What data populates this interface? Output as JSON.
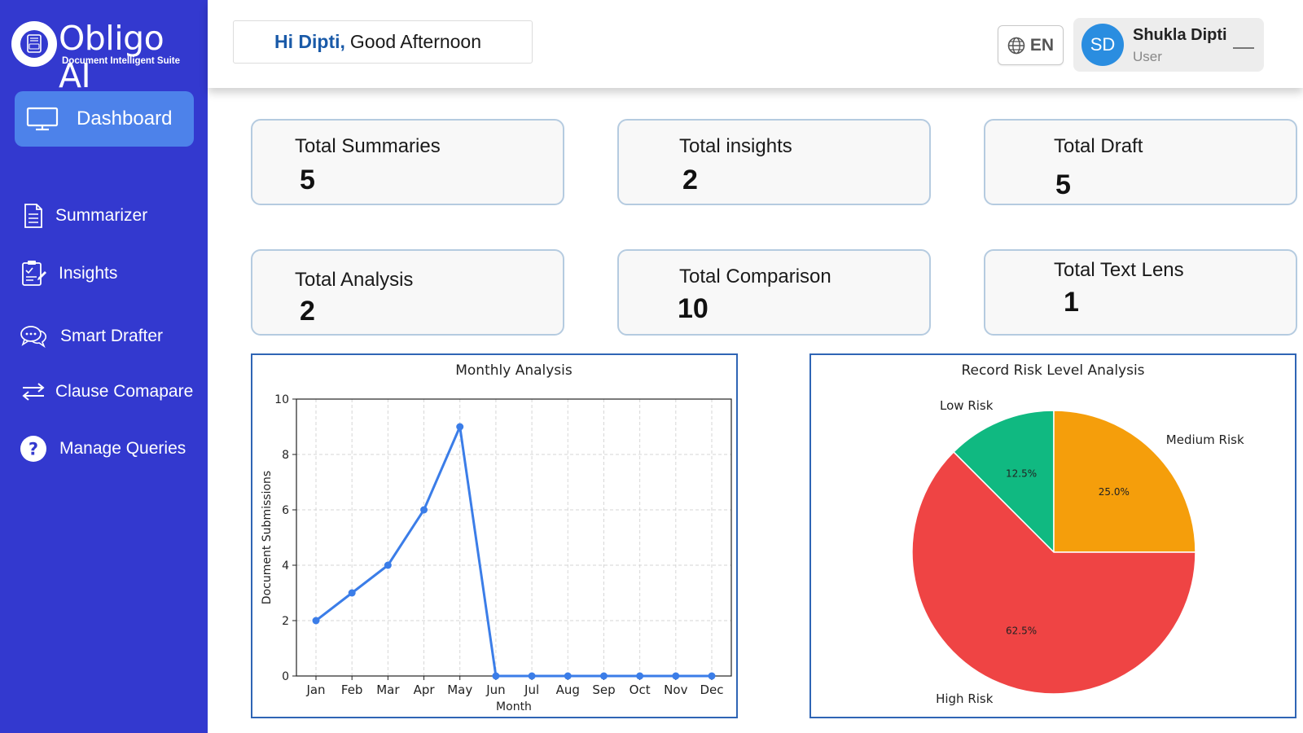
{
  "brand": {
    "name": "Obligo AI",
    "tagline": "Document Intelligent Suite"
  },
  "sidebar": {
    "active": {
      "label": "Dashboard",
      "icon": "monitor-icon"
    },
    "items": [
      {
        "label": "Summarizer",
        "icon": "document-icon"
      },
      {
        "label": "Insights",
        "icon": "insights-icon"
      },
      {
        "label": "Smart Drafter",
        "icon": "chat-bubbles-icon"
      },
      {
        "label": "Clause Comapare",
        "icon": "swap-arrows-icon"
      },
      {
        "label": "Manage Queries",
        "icon": "help-circle-icon"
      }
    ]
  },
  "header": {
    "greeting_name": "Hi Dipti,",
    "greeting_rest": "Good Afternoon",
    "language": "EN",
    "user": {
      "initials": "SD",
      "name": "Shukla Dipti",
      "role": "User"
    }
  },
  "stats": [
    {
      "title": "Total Summaries",
      "value": "5"
    },
    {
      "title": "Total insights",
      "value": "2"
    },
    {
      "title": "Total Draft",
      "value": "5"
    },
    {
      "title": "Total Analysis",
      "value": "2"
    },
    {
      "title": "Total Comparison",
      "value": "10"
    },
    {
      "title": "Total Text Lens",
      "value": "1"
    }
  ],
  "colors": {
    "sidebar": "#3339cf",
    "active_nav": "#4d82ea",
    "line": "#3b7de8",
    "low_risk": "#10b981",
    "medium_risk": "#f59e0b",
    "high_risk": "#ef4444"
  },
  "chart_data": [
    {
      "type": "line",
      "title": "Monthly Analysis",
      "xlabel": "Month",
      "ylabel": "Document Submissions",
      "categories": [
        "Jan",
        "Feb",
        "Mar",
        "Apr",
        "May",
        "Jun",
        "Jul",
        "Aug",
        "Sep",
        "Oct",
        "Nov",
        "Dec"
      ],
      "values": [
        2,
        3,
        4,
        6,
        9,
        0,
        0,
        0,
        0,
        0,
        0,
        0
      ],
      "ylim": [
        0,
        10
      ],
      "yticks": [
        0,
        2,
        4,
        6,
        8,
        10
      ],
      "grid": true
    },
    {
      "type": "pie",
      "title": "Record Risk Level Analysis",
      "slices": [
        {
          "label": "Low Risk",
          "value": 12.5,
          "pct_label": "12.5%",
          "color": "#10b981"
        },
        {
          "label": "Medium Risk",
          "value": 25.0,
          "pct_label": "25.0%",
          "color": "#f59e0b"
        },
        {
          "label": "High Risk",
          "value": 62.5,
          "pct_label": "62.5%",
          "color": "#ef4444"
        }
      ]
    }
  ]
}
